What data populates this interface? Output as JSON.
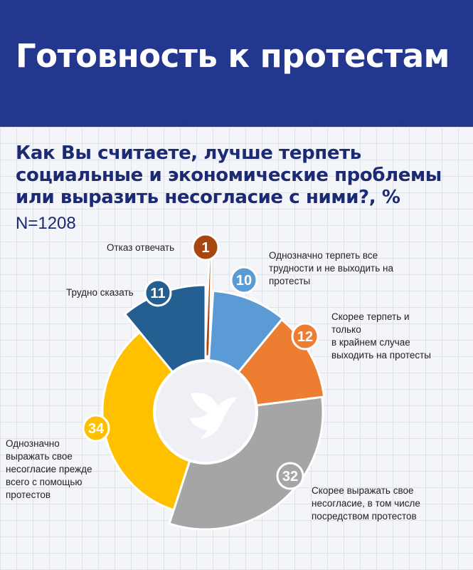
{
  "header": {
    "title": "Готовность к протестам"
  },
  "question": "Как Вы считаете, лучше терпеть социальные и экономические проблемы или выразить несогласие с ними?, %",
  "sample": "N=1208",
  "chart_data": {
    "type": "pie",
    "variant": "donut",
    "title": "Как Вы считаете, лучше терпеть социальные и экономические проблемы или выразить несогласие с ними?, %",
    "note": "N=1208",
    "unit": "%",
    "slices": [
      {
        "label": "Отказ отвечать",
        "value": 1,
        "color": "#a8460f"
      },
      {
        "label": "Однозначно терпеть все трудности и не выходить на протесты",
        "value": 10,
        "color": "#5b9bd5"
      },
      {
        "label": "Скорее терпеть и только в крайнем случае выходить на протесты",
        "value": 12,
        "color": "#ed7d31"
      },
      {
        "label": "Скорее выражать свое несогласие, в том числе посредством протестов",
        "value": 32,
        "color": "#a5a5a5"
      },
      {
        "label": "Однозначно выражать свое несогласие прежде всего с помощью протестов",
        "value": 34,
        "color": "#ffc000"
      },
      {
        "label": "Трудно сказать",
        "value": 11,
        "color": "#255e91"
      }
    ]
  },
  "labels": {
    "refuse": "Отказ отвечать",
    "hard": "Трудно сказать",
    "tolerate_1": "Однозначно терпеть все",
    "tolerate_2": "трудности и не выходить на",
    "tolerate_3": "протесты",
    "rather_tol_1": "Скорее терпеть и",
    "rather_tol_2": "только",
    "rather_tol_3": "в крайнем случае",
    "rather_tol_4": "выходить на протесты",
    "rather_exp_1": "Скорее выражать свое",
    "rather_exp_2": "несогласие, в том числе",
    "rather_exp_3": "посредством протестов",
    "def_exp_1": "Однозначно",
    "def_exp_2": "выражать свое",
    "def_exp_3": "несогласие прежде",
    "def_exp_4": "всего с помощью",
    "def_exp_5": "протестов"
  }
}
